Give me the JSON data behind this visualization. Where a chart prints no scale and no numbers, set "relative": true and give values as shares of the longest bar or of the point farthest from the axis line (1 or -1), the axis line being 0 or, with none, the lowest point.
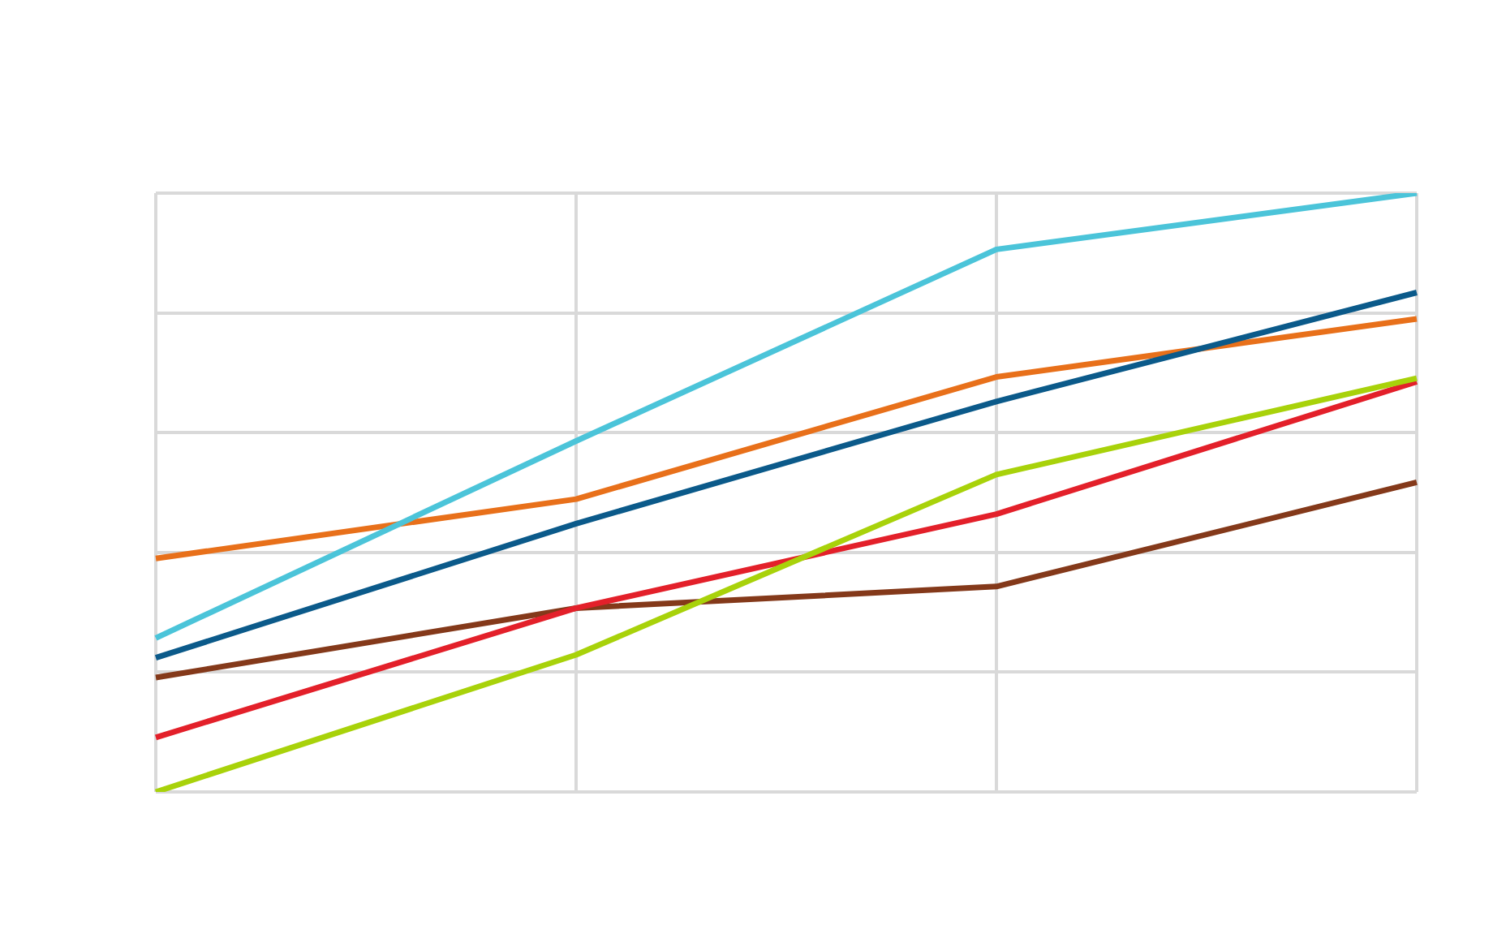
{
  "chart_data": {
    "type": "line",
    "relative": true,
    "grid": true,
    "categories": [
      null,
      null,
      null,
      null
    ],
    "series": [
      {
        "color": "#4bc4d9",
        "values": [
          0.257,
          0.586,
          0.906,
          1
        ]
      },
      {
        "color": "#0b5a8a",
        "values": [
          0.224,
          0.448,
          0.652,
          0.834
        ]
      },
      {
        "color": "#e8701a",
        "values": [
          0.39,
          0.489,
          0.693,
          0.79
        ]
      },
      {
        "color": "#a8d20a",
        "values": [
          0,
          0.229,
          0.53,
          0.691
        ]
      },
      {
        "color": "#e3202a",
        "values": [
          0.091,
          0.307,
          0.464,
          0.685
        ]
      },
      {
        "color": "#84391a",
        "values": [
          0.191,
          0.307,
          0.343,
          0.517
        ]
      }
    ]
  }
}
